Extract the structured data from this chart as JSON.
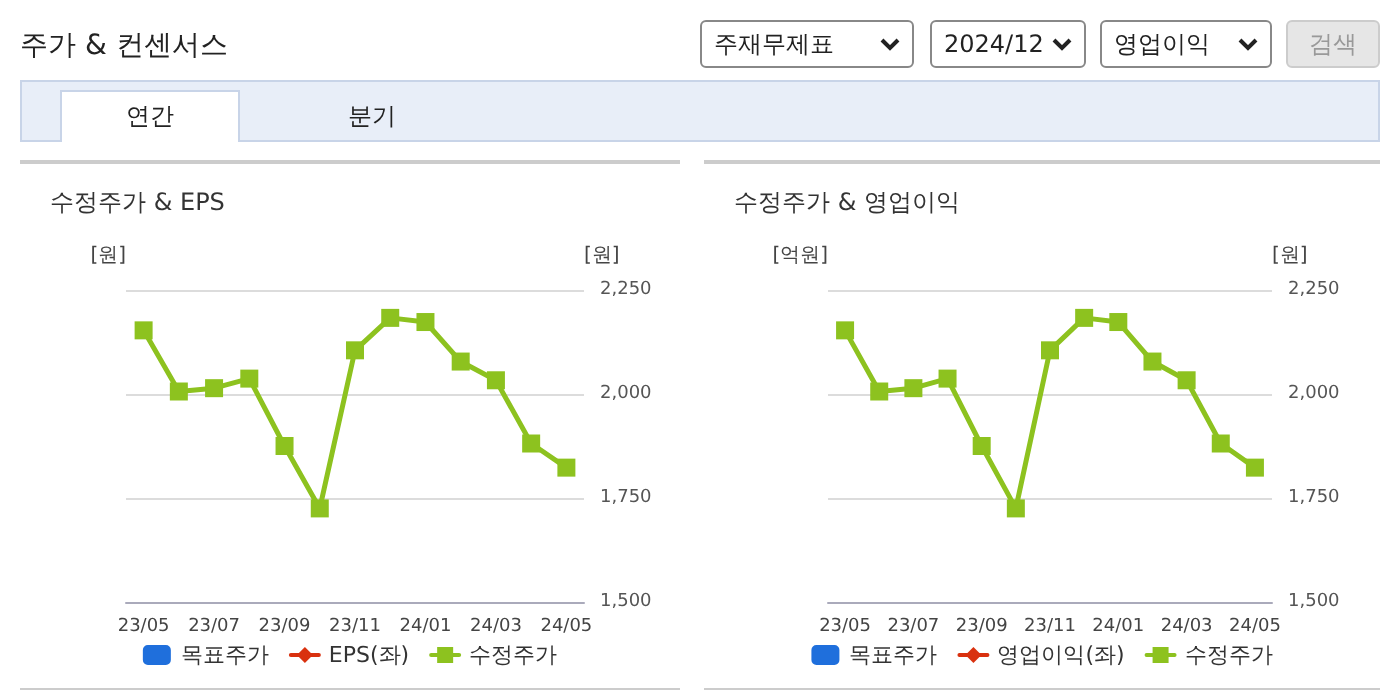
{
  "chart_data": [
    {
      "type": "line",
      "title": "수정주가 & EPS",
      "annotations": [
        "주가 & 컨센서스",
        "주재무제표",
        "2024/12",
        "영업이익",
        "검색",
        "연간",
        "분기"
      ],
      "categories": [
        "23/05",
        null,
        "23/07",
        null,
        "23/09",
        null,
        "23/11",
        null,
        "24/01",
        null,
        "24/03",
        null,
        "24/05"
      ],
      "ylabel": "[원]",
      "y2label": "[원]",
      "y2lim": [
        1500,
        2250
      ],
      "y2ticks": [
        {
          "value": 1500,
          "label": "1,500"
        },
        {
          "value": 1750,
          "label": "1,750"
        },
        {
          "value": 2000,
          "label": "2,000"
        },
        {
          "value": 2250,
          "label": "2,250"
        }
      ],
      "grid": "y",
      "legend": "bottom",
      "tick_labels": [
        "x",
        "y2"
      ],
      "series": [
        {
          "name": "목표주가",
          "type": "bar",
          "color": "#1f6fdc",
          "values": [
            null,
            null,
            null,
            null,
            null,
            null,
            null,
            null,
            null,
            null,
            null,
            null,
            null
          ]
        },
        {
          "name": "EPS(좌)",
          "marker": "diamond",
          "color": "#d9310f",
          "values": [
            null,
            null,
            null,
            null,
            null,
            null,
            null,
            null,
            null,
            null,
            null,
            null,
            null
          ]
        },
        {
          "name": "수정주가",
          "marker": "square",
          "axis": "y2",
          "color": "#8dc21f",
          "values": [
            2153,
            2006,
            2014,
            2037,
            1875,
            1725,
            2105,
            2183,
            2173,
            2078,
            2033,
            1881,
            1823
          ]
        }
      ]
    },
    {
      "type": "line",
      "title": "수정주가 & 영업이익",
      "categories": [
        "23/05",
        null,
        "23/07",
        null,
        "23/09",
        null,
        "23/11",
        null,
        "24/01",
        null,
        "24/03",
        null,
        "24/05"
      ],
      "ylabel": "[억원]",
      "y2label": "[원]",
      "y2lim": [
        1500,
        2250
      ],
      "y2ticks": [
        {
          "value": 1500,
          "label": "1,500"
        },
        {
          "value": 1750,
          "label": "1,750"
        },
        {
          "value": 2000,
          "label": "2,000"
        },
        {
          "value": 2250,
          "label": "2,250"
        }
      ],
      "grid": "y",
      "legend": "bottom",
      "tick_labels": [
        "x",
        "y2"
      ],
      "series": [
        {
          "name": "목표주가",
          "type": "bar",
          "color": "#1f6fdc",
          "values": [
            null,
            null,
            null,
            null,
            null,
            null,
            null,
            null,
            null,
            null,
            null,
            null,
            null
          ]
        },
        {
          "name": "영업이익(좌)",
          "marker": "diamond",
          "color": "#d9310f",
          "values": [
            null,
            null,
            null,
            null,
            null,
            null,
            null,
            null,
            null,
            null,
            null,
            null,
            null
          ]
        },
        {
          "name": "수정주가",
          "marker": "square",
          "axis": "y2",
          "color": "#8dc21f",
          "values": [
            2153,
            2006,
            2014,
            2037,
            1875,
            1725,
            2105,
            2183,
            2173,
            2078,
            2033,
            1881,
            1823
          ]
        }
      ]
    }
  ]
}
